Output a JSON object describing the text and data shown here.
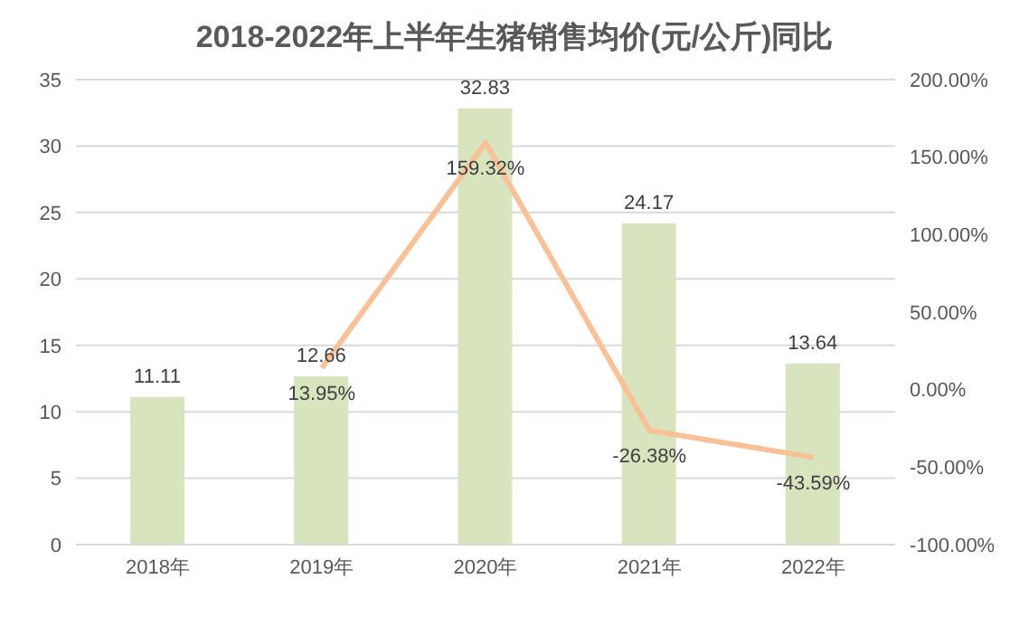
{
  "chart_data": {
    "type": "bar",
    "title": "2018-2022年上半年生猪销售均价(元/公斤)同比",
    "categories": [
      "2018年",
      "2019年",
      "2020年",
      "2021年",
      "2022年"
    ],
    "series": [
      {
        "color": "#d7e4bd",
        "values": [
          11.11,
          12.66,
          32.83,
          24.17,
          13.64
        ],
        "value_labels": [
          "11.11",
          "12.66",
          "32.83",
          "24.17",
          "13.64"
        ]
      },
      {
        "type": "line",
        "axis": "y2",
        "color": "#f8c197",
        "values": [
          null,
          13.95,
          159.32,
          -26.38,
          -43.59
        ],
        "value_labels": [
          null,
          "13.95%",
          "159.32%",
          "-26.38%",
          "-43.59%"
        ]
      }
    ],
    "ylim": [
      0,
      35
    ],
    "yticks": [
      0,
      5,
      10,
      15,
      20,
      25,
      30,
      35
    ],
    "y2lim": [
      -100,
      200
    ],
    "y2ticks": [
      {
        "value": -100,
        "label": "-100.00%"
      },
      {
        "value": -50,
        "label": "-50.00%"
      },
      {
        "value": 0,
        "label": "0.00%"
      },
      {
        "value": 50,
        "label": "50.00%"
      },
      {
        "value": 100,
        "label": "100.00%"
      },
      {
        "value": 150,
        "label": "150.00%"
      },
      {
        "value": 200,
        "label": "200.00%"
      }
    ],
    "grid": "y",
    "marker": "none",
    "line_style": "solid"
  }
}
